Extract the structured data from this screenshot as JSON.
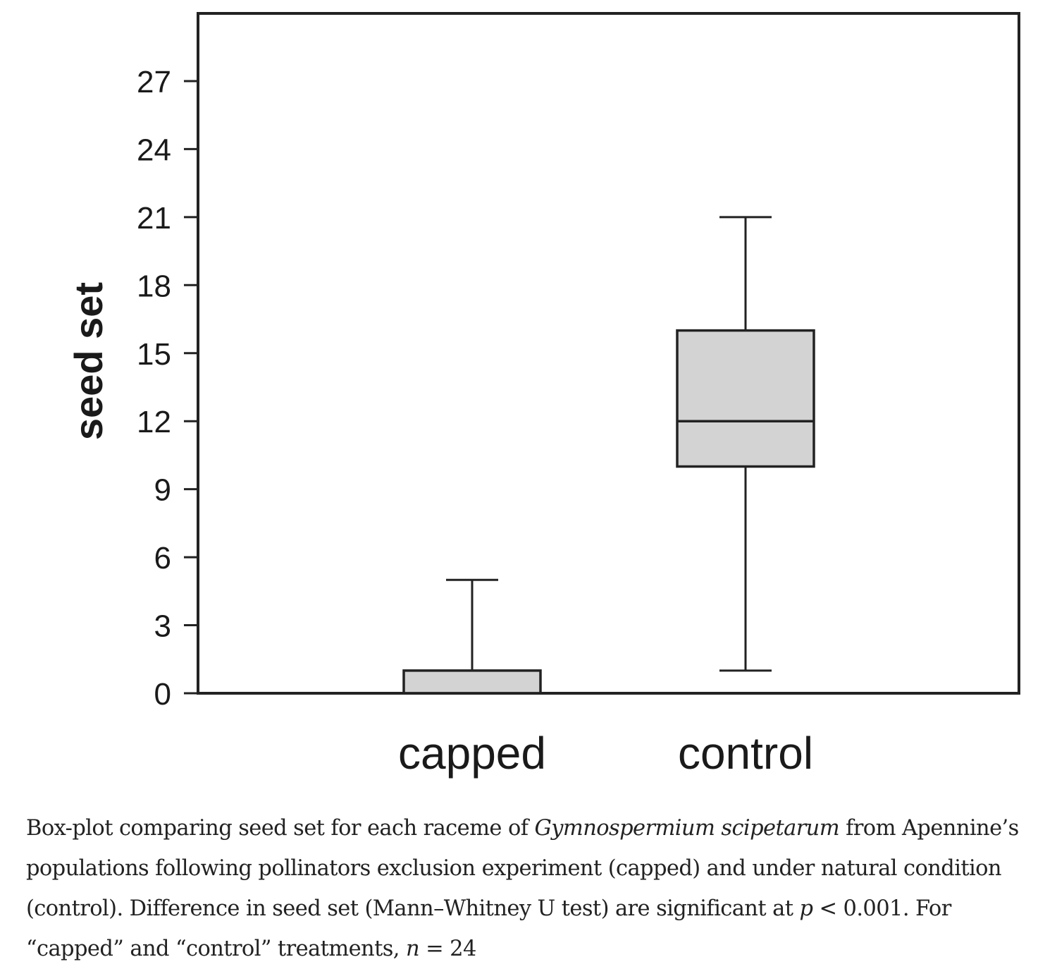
{
  "chart_data": {
    "type": "box",
    "ylabel": "seed set",
    "xlabel": "",
    "ylim": [
      0,
      30
    ],
    "yticks": [
      0,
      3,
      6,
      9,
      12,
      15,
      18,
      21,
      24,
      27
    ],
    "categories": [
      "capped",
      "control"
    ],
    "boxes": [
      {
        "category": "capped",
        "whisker_low": 0,
        "q1": 0,
        "median": 0,
        "q3": 1,
        "whisker_high": 5
      },
      {
        "category": "control",
        "whisker_low": 1,
        "q1": 10,
        "median": 12,
        "q3": 16,
        "whisker_high": 21
      }
    ],
    "box_color": "#d3d3d3",
    "grid": false
  },
  "caption": {
    "part1": "Box-plot comparing seed set for each raceme of ",
    "species": "Gymnospermium scipetarum",
    "part2": " from Apennine’s populations following pollinators exclusion experiment (capped) and under natural condition (control). Difference in seed set (Mann–Whitney U test) are significant at ",
    "p_symbol": "p",
    "part3": " < 0.001. For “capped” and “control” treatments, ",
    "n_symbol": "n",
    "part4": " = 24"
  }
}
